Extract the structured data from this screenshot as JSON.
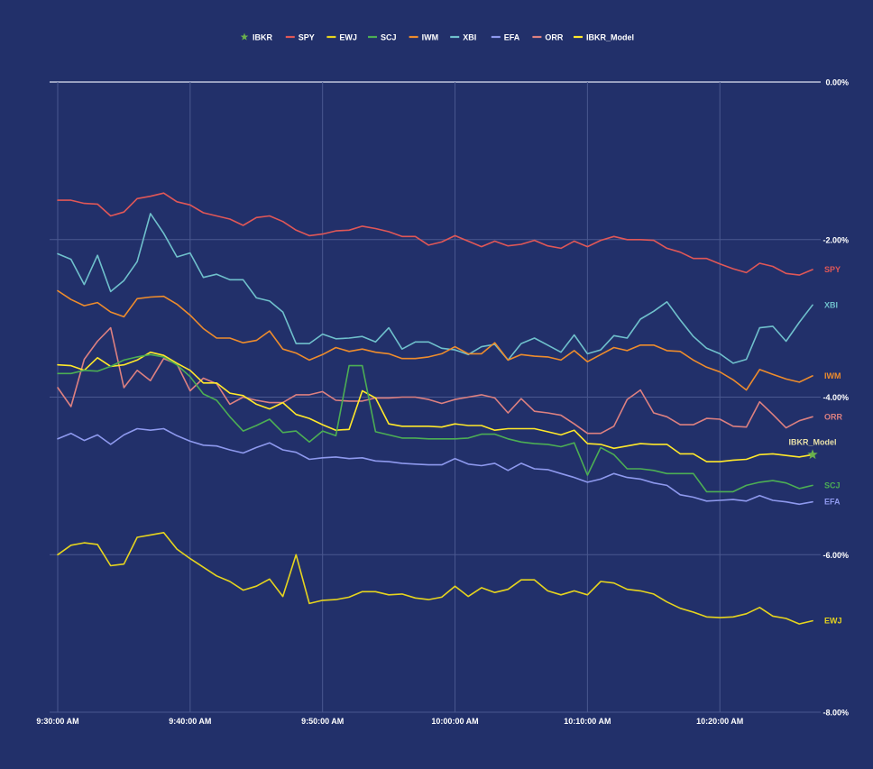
{
  "chart_data": {
    "type": "line",
    "title": "",
    "xlabel": "",
    "ylabel": "",
    "ylim": [
      -8,
      0
    ],
    "y_ticks": [
      {
        "value": 0,
        "label": "0.00%"
      },
      {
        "value": -2,
        "label": "-2.00%"
      },
      {
        "value": -4,
        "label": "-4.00%"
      },
      {
        "value": -6,
        "label": "-6.00%"
      },
      {
        "value": -8,
        "label": "-8.00%"
      }
    ],
    "x_range": [
      0,
      57
    ],
    "x_ticks": [
      {
        "value": 0,
        "label": "9:30:00 AM"
      },
      {
        "value": 10,
        "label": "9:40:00 AM"
      },
      {
        "value": 20,
        "label": "9:50:00 AM"
      },
      {
        "value": 30,
        "label": "10:00:00 AM"
      },
      {
        "value": 40,
        "label": "10:10:00 AM"
      },
      {
        "value": 50,
        "label": "10:20:00 AM"
      }
    ],
    "grid": true,
    "legend_position": "top-center",
    "legend": [
      {
        "name": "IBKR",
        "color": "#6ab04c",
        "symbol": "star"
      },
      {
        "name": "SPY",
        "color": "#e05757",
        "symbol": "line"
      },
      {
        "name": "EWJ",
        "color": "#e6d41e",
        "symbol": "line"
      },
      {
        "name": "SCJ",
        "color": "#4cae54",
        "symbol": "line"
      },
      {
        "name": "IWM",
        "color": "#ee8c2c",
        "symbol": "line"
      },
      {
        "name": "XBI",
        "color": "#6fc0cc",
        "symbol": "line"
      },
      {
        "name": "EFA",
        "color": "#8e99ee",
        "symbol": "line"
      },
      {
        "name": "ORR",
        "color": "#dd8080",
        "symbol": "line"
      },
      {
        "name": "IBKR_Model",
        "color": "#ffe82a",
        "symbol": "line"
      }
    ],
    "series": [
      {
        "name": "SPY",
        "color": "#e05757",
        "label": "SPY",
        "values": [
          -1.5,
          -1.5,
          -1.54,
          -1.55,
          -1.7,
          -1.65,
          -1.48,
          -1.45,
          -1.41,
          -1.52,
          -1.56,
          -1.66,
          -1.7,
          -1.74,
          -1.82,
          -1.72,
          -1.7,
          -1.77,
          -1.88,
          -1.95,
          -1.93,
          -1.89,
          -1.88,
          -1.83,
          -1.86,
          -1.9,
          -1.96,
          -1.96,
          -2.07,
          -2.03,
          -1.95,
          -2.02,
          -2.09,
          -2.02,
          -2.08,
          -2.06,
          -2.01,
          -2.08,
          -2.11,
          -2.02,
          -2.09,
          -2.01,
          -1.96,
          -2.0,
          -2.0,
          -2.01,
          -2.11,
          -2.16,
          -2.24,
          -2.24,
          -2.31,
          -2.37,
          -2.42,
          -2.3,
          -2.34,
          -2.43,
          -2.45,
          -2.38
        ]
      },
      {
        "name": "XBI",
        "color": "#6fc0cc",
        "label": "XBI",
        "values": [
          -2.18,
          -2.25,
          -2.57,
          -2.2,
          -2.66,
          -2.52,
          -2.28,
          -1.67,
          -1.92,
          -2.22,
          -2.17,
          -2.48,
          -2.44,
          -2.51,
          -2.51,
          -2.74,
          -2.78,
          -2.92,
          -3.32,
          -3.32,
          -3.2,
          -3.26,
          -3.25,
          -3.23,
          -3.3,
          -3.12,
          -3.39,
          -3.3,
          -3.3,
          -3.38,
          -3.4,
          -3.46,
          -3.36,
          -3.33,
          -3.53,
          -3.32,
          -3.25,
          -3.34,
          -3.43,
          -3.21,
          -3.45,
          -3.4,
          -3.22,
          -3.25,
          -3.01,
          -2.91,
          -2.79,
          -3.02,
          -3.23,
          -3.38,
          -3.45,
          -3.57,
          -3.52,
          -3.12,
          -3.1,
          -3.29,
          -3.05,
          -2.83
        ]
      },
      {
        "name": "IWM",
        "color": "#ee8c2c",
        "label": "IWM",
        "values": [
          -2.65,
          -2.76,
          -2.84,
          -2.8,
          -2.92,
          -2.98,
          -2.75,
          -2.73,
          -2.72,
          -2.82,
          -2.96,
          -3.13,
          -3.25,
          -3.25,
          -3.31,
          -3.28,
          -3.16,
          -3.39,
          -3.44,
          -3.53,
          -3.46,
          -3.37,
          -3.42,
          -3.39,
          -3.43,
          -3.45,
          -3.51,
          -3.51,
          -3.49,
          -3.45,
          -3.36,
          -3.45,
          -3.45,
          -3.31,
          -3.53,
          -3.46,
          -3.48,
          -3.49,
          -3.53,
          -3.41,
          -3.55,
          -3.46,
          -3.37,
          -3.41,
          -3.34,
          -3.34,
          -3.41,
          -3.42,
          -3.53,
          -3.62,
          -3.68,
          -3.78,
          -3.91,
          -3.65,
          -3.71,
          -3.77,
          -3.81,
          -3.73
        ]
      },
      {
        "name": "ORR",
        "color": "#dd8080",
        "label": "ORR",
        "values": [
          -3.88,
          -4.12,
          -3.52,
          -3.29,
          -3.12,
          -3.88,
          -3.66,
          -3.79,
          -3.51,
          -3.58,
          -3.92,
          -3.76,
          -3.83,
          -4.09,
          -4.0,
          -4.04,
          -4.07,
          -4.07,
          -3.97,
          -3.97,
          -3.93,
          -4.04,
          -4.05,
          -4.05,
          -4.01,
          -4.01,
          -4.0,
          -4.0,
          -4.03,
          -4.08,
          -4.03,
          -4.0,
          -3.97,
          -4.01,
          -4.2,
          -4.02,
          -4.18,
          -4.2,
          -4.23,
          -4.34,
          -4.46,
          -4.46,
          -4.37,
          -4.03,
          -3.91,
          -4.2,
          -4.25,
          -4.35,
          -4.35,
          -4.27,
          -4.28,
          -4.37,
          -4.38,
          -4.06,
          -4.22,
          -4.39,
          -4.3,
          -4.25
        ]
      },
      {
        "name": "IBKR_Model",
        "color": "#ffe82a",
        "label": "IBKR_Model",
        "values": [
          -3.59,
          -3.6,
          -3.66,
          -3.5,
          -3.61,
          -3.59,
          -3.53,
          -3.43,
          -3.47,
          -3.57,
          -3.66,
          -3.82,
          -3.82,
          -3.95,
          -3.98,
          -4.09,
          -4.15,
          -4.07,
          -4.22,
          -4.27,
          -4.35,
          -4.42,
          -4.41,
          -3.92,
          -4.01,
          -4.34,
          -4.37,
          -4.37,
          -4.37,
          -4.38,
          -4.34,
          -4.36,
          -4.36,
          -4.42,
          -4.4,
          -4.4,
          -4.4,
          -4.44,
          -4.48,
          -4.42,
          -4.59,
          -4.6,
          -4.65,
          -4.62,
          -4.59,
          -4.6,
          -4.6,
          -4.72,
          -4.72,
          -4.82,
          -4.82,
          -4.8,
          -4.79,
          -4.73,
          -4.72,
          -4.74,
          -4.76,
          -4.73
        ]
      },
      {
        "name": "SCJ",
        "color": "#4cae54",
        "label": "SCJ",
        "values": [
          -3.7,
          -3.7,
          -3.66,
          -3.67,
          -3.61,
          -3.53,
          -3.49,
          -3.46,
          -3.49,
          -3.59,
          -3.74,
          -3.96,
          -4.04,
          -4.25,
          -4.43,
          -4.36,
          -4.28,
          -4.45,
          -4.43,
          -4.57,
          -4.43,
          -4.49,
          -3.6,
          -3.6,
          -4.44,
          -4.48,
          -4.52,
          -4.52,
          -4.53,
          -4.53,
          -4.53,
          -4.52,
          -4.47,
          -4.47,
          -4.53,
          -4.57,
          -4.59,
          -4.6,
          -4.63,
          -4.58,
          -4.99,
          -4.64,
          -4.73,
          -4.91,
          -4.91,
          -4.93,
          -4.97,
          -4.97,
          -4.97,
          -5.2,
          -5.2,
          -5.2,
          -5.12,
          -5.08,
          -5.06,
          -5.09,
          -5.16,
          -5.12
        ]
      },
      {
        "name": "EFA",
        "color": "#8e99ee",
        "label": "EFA",
        "values": [
          -4.53,
          -4.46,
          -4.55,
          -4.48,
          -4.6,
          -4.48,
          -4.4,
          -4.42,
          -4.4,
          -4.49,
          -4.56,
          -4.61,
          -4.62,
          -4.67,
          -4.71,
          -4.64,
          -4.58,
          -4.67,
          -4.7,
          -4.79,
          -4.77,
          -4.76,
          -4.78,
          -4.77,
          -4.81,
          -4.82,
          -4.84,
          -4.85,
          -4.86,
          -4.86,
          -4.78,
          -4.85,
          -4.87,
          -4.84,
          -4.93,
          -4.84,
          -4.91,
          -4.92,
          -4.97,
          -5.02,
          -5.08,
          -5.04,
          -4.97,
          -5.02,
          -5.04,
          -5.09,
          -5.12,
          -5.24,
          -5.27,
          -5.32,
          -5.31,
          -5.3,
          -5.32,
          -5.25,
          -5.31,
          -5.33,
          -5.36,
          -5.33
        ]
      },
      {
        "name": "EWJ",
        "color": "#e6d41e",
        "label": "EWJ",
        "values": [
          -6.0,
          -5.88,
          -5.85,
          -5.87,
          -6.14,
          -6.12,
          -5.78,
          -5.75,
          -5.72,
          -5.93,
          -6.05,
          -6.16,
          -6.27,
          -6.34,
          -6.45,
          -6.4,
          -6.31,
          -6.53,
          -6.0,
          -6.62,
          -6.58,
          -6.57,
          -6.54,
          -6.47,
          -6.47,
          -6.51,
          -6.5,
          -6.55,
          -6.57,
          -6.54,
          -6.4,
          -6.53,
          -6.42,
          -6.48,
          -6.44,
          -6.32,
          -6.32,
          -6.46,
          -6.51,
          -6.46,
          -6.51,
          -6.34,
          -6.36,
          -6.44,
          -6.46,
          -6.5,
          -6.6,
          -6.68,
          -6.73,
          -6.79,
          -6.8,
          -6.79,
          -6.75,
          -6.67,
          -6.78,
          -6.81,
          -6.88,
          -6.84
        ]
      }
    ],
    "markers": [
      {
        "series": "IBKR",
        "x": 57,
        "y": -4.73,
        "symbol": "star",
        "color": "#6ab04c",
        "label": "IBKR_Model",
        "label_color": "#e8e0a8"
      }
    ]
  }
}
